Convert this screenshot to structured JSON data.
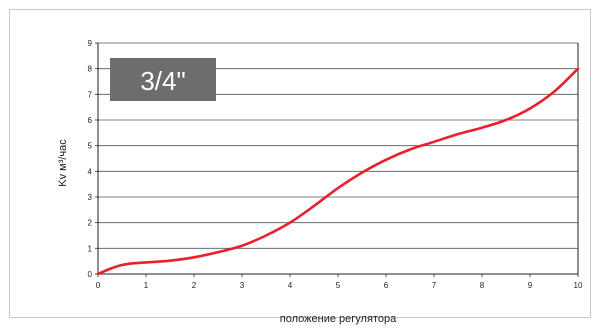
{
  "chart_data": {
    "type": "line",
    "title": "3/4\"",
    "xlabel": "положение регулятора",
    "ylabel": "Kv м³/час",
    "xlim": [
      0,
      10
    ],
    "ylim": [
      0,
      9
    ],
    "x_ticks": [
      "0",
      "1",
      "2",
      "3",
      "4",
      "5",
      "6",
      "7",
      "8",
      "9",
      "10"
    ],
    "y_ticks": [
      "0",
      "1",
      "2",
      "3",
      "4",
      "5",
      "6",
      "7",
      "8",
      "9"
    ],
    "grid": "horizontal",
    "series": [
      {
        "x": [
          0,
          0.25,
          0.5,
          0.75,
          1,
          1.5,
          2,
          2.5,
          3,
          3.5,
          4,
          4.5,
          5,
          5.5,
          6,
          6.5,
          7,
          7.5,
          8,
          8.5,
          9,
          9.5,
          10
        ],
        "y": [
          0,
          0.2,
          0.35,
          0.42,
          0.45,
          0.52,
          0.65,
          0.85,
          1.1,
          1.5,
          2.0,
          2.65,
          3.35,
          3.95,
          4.45,
          4.85,
          5.15,
          5.45,
          5.7,
          6.0,
          6.45,
          7.1,
          8.0
        ]
      }
    ],
    "colors": {
      "line": "#e8202a",
      "badge_bg": "#6d6d6d",
      "grid": "#555555"
    }
  }
}
